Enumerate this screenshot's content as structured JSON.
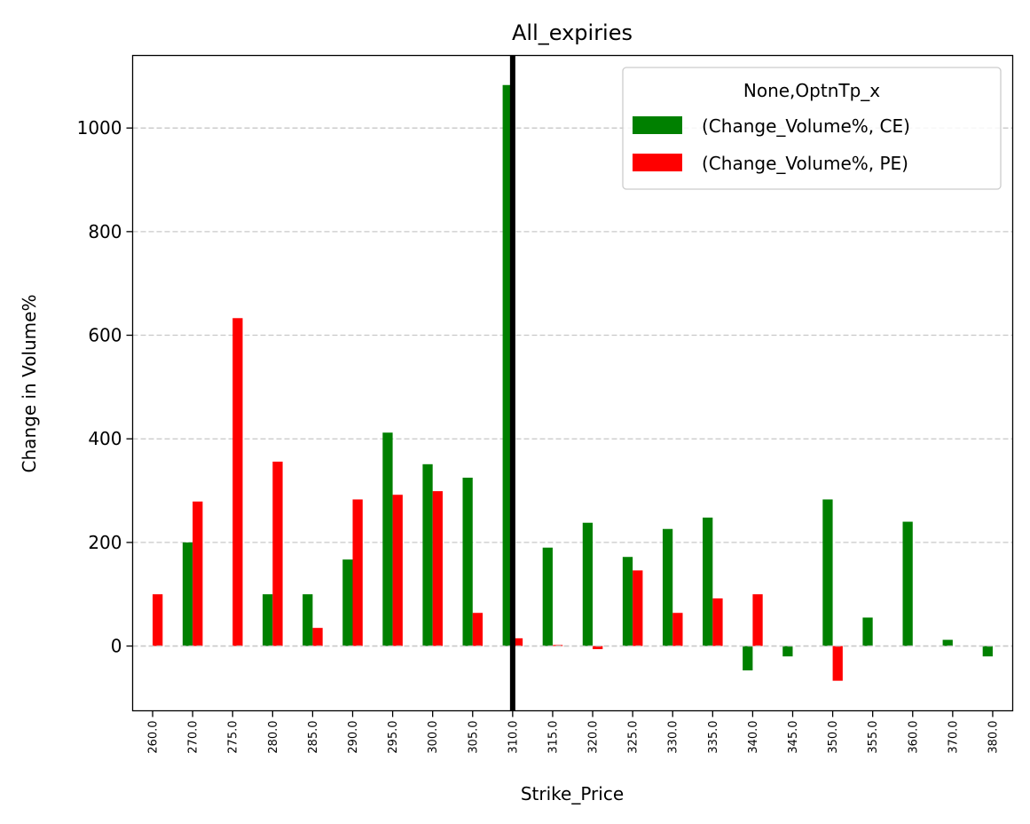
{
  "chart_data": {
    "type": "bar",
    "title": "All_expiries",
    "xlabel": "Strike_Price",
    "ylabel": "Change in Volume%",
    "categories": [
      "260.0",
      "270.0",
      "275.0",
      "280.0",
      "285.0",
      "290.0",
      "295.0",
      "300.0",
      "305.0",
      "310.0",
      "315.0",
      "320.0",
      "325.0",
      "330.0",
      "335.0",
      "340.0",
      "345.0",
      "350.0",
      "355.0",
      "360.0",
      "370.0",
      "380.0"
    ],
    "series": [
      {
        "name": "(Change_Volume%, CE)",
        "color": "#008000",
        "values": [
          0,
          200,
          0,
          100,
          100,
          167,
          412,
          351,
          325,
          1083,
          190,
          238,
          172,
          226,
          248,
          -47,
          -20,
          283,
          55,
          240,
          12,
          -20
        ]
      },
      {
        "name": "(Change_Volume%, PE)",
        "color": "#ff0000",
        "values": [
          100,
          279,
          633,
          356,
          35,
          283,
          292,
          299,
          64,
          15,
          2,
          -6,
          146,
          64,
          92,
          100,
          0,
          -67,
          0,
          0,
          0,
          0
        ]
      }
    ],
    "legend": {
      "title": "None,OptnTp_x",
      "position": "upper right"
    },
    "ylim": [
      -125,
      1140
    ],
    "yticks": [
      0,
      200,
      400,
      600,
      800,
      1000
    ],
    "ygrid": true,
    "vline_category": "310.0"
  }
}
